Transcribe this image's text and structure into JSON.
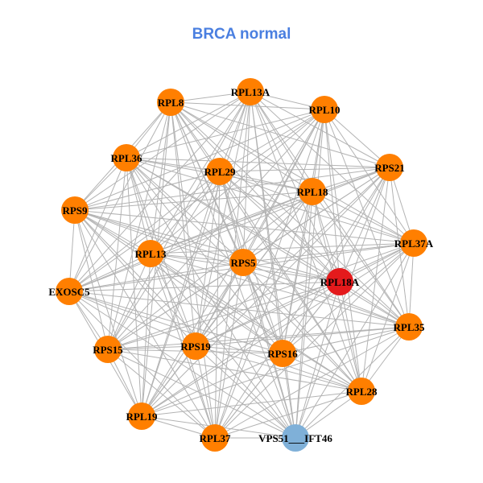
{
  "title": "BRCA normal",
  "colors": {
    "title": "#4a7fe0",
    "node_default": "#ff7f00",
    "edge": "#b3b3b3"
  },
  "node_categories": [
    {
      "category": "default",
      "color": "#ff7f00"
    },
    {
      "category": "highlight",
      "color": "#e41a1c"
    },
    {
      "category": "secondary",
      "color": "#7fb0d8"
    }
  ],
  "nodes": [
    {
      "id": "RPL8",
      "label": "RPL8",
      "category": "default"
    },
    {
      "id": "RPL13A",
      "label": "RPL13A",
      "category": "default"
    },
    {
      "id": "RPL10",
      "label": "RPL10",
      "category": "default"
    },
    {
      "id": "RPL36",
      "label": "RPL36",
      "category": "default"
    },
    {
      "id": "RPL29",
      "label": "RPL29",
      "category": "default"
    },
    {
      "id": "RPS21",
      "label": "RPS21",
      "category": "default"
    },
    {
      "id": "RPL18",
      "label": "RPL18",
      "category": "default"
    },
    {
      "id": "RPS9",
      "label": "RPS9",
      "category": "default"
    },
    {
      "id": "RPL37A",
      "label": "RPL37A",
      "category": "default"
    },
    {
      "id": "RPL13",
      "label": "RPL13",
      "category": "default"
    },
    {
      "id": "RPS5",
      "label": "RPS5",
      "category": "default"
    },
    {
      "id": "RPL18A",
      "label": "RPL18A",
      "category": "highlight"
    },
    {
      "id": "EXOSC5",
      "label": "EXOSC5",
      "category": "default"
    },
    {
      "id": "RPL35",
      "label": "RPL35",
      "category": "default"
    },
    {
      "id": "RPS19",
      "label": "RPS19",
      "category": "default"
    },
    {
      "id": "RPS15",
      "label": "RPS15",
      "category": "default"
    },
    {
      "id": "RPS16",
      "label": "RPS16",
      "category": "default"
    },
    {
      "id": "RPL28",
      "label": "RPL28",
      "category": "default"
    },
    {
      "id": "RPL19",
      "label": "RPL19",
      "category": "default"
    },
    {
      "id": "RPL37",
      "label": "RPL37",
      "category": "default"
    },
    {
      "id": "VPS51___IFT46",
      "label": "VPS51___IFT46",
      "category": "secondary"
    }
  ],
  "edges": [
    [
      "RPL8",
      "RPL13A"
    ],
    [
      "RPL8",
      "RPL10"
    ],
    [
      "RPL8",
      "RPL36"
    ],
    [
      "RPL8",
      "RPL29"
    ],
    [
      "RPL8",
      "RPS21"
    ],
    [
      "RPL8",
      "RPL18"
    ],
    [
      "RPL8",
      "RPS9"
    ],
    [
      "RPL8",
      "RPL37A"
    ],
    [
      "RPL8",
      "RPL13"
    ],
    [
      "RPL8",
      "RPS5"
    ],
    [
      "RPL8",
      "RPL18A"
    ],
    [
      "RPL8",
      "EXOSC5"
    ],
    [
      "RPL8",
      "RPL35"
    ],
    [
      "RPL8",
      "RPS19"
    ],
    [
      "RPL8",
      "RPS15"
    ],
    [
      "RPL8",
      "RPS16"
    ],
    [
      "RPL8",
      "RPL28"
    ],
    [
      "RPL8",
      "RPL19"
    ],
    [
      "RPL8",
      "RPL37"
    ],
    [
      "RPL8",
      "VPS51___IFT46"
    ],
    [
      "RPL13A",
      "RPL10"
    ],
    [
      "RPL13A",
      "RPL36"
    ],
    [
      "RPL13A",
      "RPL29"
    ],
    [
      "RPL13A",
      "RPS21"
    ],
    [
      "RPL13A",
      "RPL18"
    ],
    [
      "RPL13A",
      "RPS9"
    ],
    [
      "RPL13A",
      "RPL37A"
    ],
    [
      "RPL13A",
      "RPL13"
    ],
    [
      "RPL13A",
      "RPS5"
    ],
    [
      "RPL13A",
      "RPL18A"
    ],
    [
      "RPL13A",
      "EXOSC5"
    ],
    [
      "RPL13A",
      "RPL35"
    ],
    [
      "RPL13A",
      "RPS19"
    ],
    [
      "RPL13A",
      "RPS15"
    ],
    [
      "RPL13A",
      "RPS16"
    ],
    [
      "RPL13A",
      "RPL28"
    ],
    [
      "RPL13A",
      "RPL19"
    ],
    [
      "RPL13A",
      "RPL37"
    ],
    [
      "RPL13A",
      "VPS51___IFT46"
    ],
    [
      "RPL10",
      "RPL36"
    ],
    [
      "RPL10",
      "RPL29"
    ],
    [
      "RPL10",
      "RPS21"
    ],
    [
      "RPL10",
      "RPL18"
    ],
    [
      "RPL10",
      "RPS9"
    ],
    [
      "RPL10",
      "RPL37A"
    ],
    [
      "RPL10",
      "RPL13"
    ],
    [
      "RPL10",
      "RPS5"
    ],
    [
      "RPL10",
      "RPL18A"
    ],
    [
      "RPL10",
      "EXOSC5"
    ],
    [
      "RPL10",
      "RPL35"
    ],
    [
      "RPL10",
      "RPS19"
    ],
    [
      "RPL10",
      "RPS15"
    ],
    [
      "RPL10",
      "RPS16"
    ],
    [
      "RPL10",
      "RPL28"
    ],
    [
      "RPL10",
      "RPL19"
    ],
    [
      "RPL10",
      "RPL37"
    ],
    [
      "RPL10",
      "VPS51___IFT46"
    ],
    [
      "RPL36",
      "RPL29"
    ],
    [
      "RPL36",
      "RPS21"
    ],
    [
      "RPL36",
      "RPL18"
    ],
    [
      "RPL36",
      "RPS9"
    ],
    [
      "RPL36",
      "RPL37A"
    ],
    [
      "RPL36",
      "RPL13"
    ],
    [
      "RPL36",
      "RPS5"
    ],
    [
      "RPL36",
      "RPL18A"
    ],
    [
      "RPL36",
      "EXOSC5"
    ],
    [
      "RPL36",
      "RPL35"
    ],
    [
      "RPL36",
      "RPS19"
    ],
    [
      "RPL36",
      "RPS15"
    ],
    [
      "RPL36",
      "RPS16"
    ],
    [
      "RPL36",
      "RPL28"
    ],
    [
      "RPL36",
      "RPL19"
    ],
    [
      "RPL36",
      "RPL37"
    ],
    [
      "RPL36",
      "VPS51___IFT46"
    ],
    [
      "RPL29",
      "RPS21"
    ],
    [
      "RPL29",
      "RPL18"
    ],
    [
      "RPL29",
      "RPS9"
    ],
    [
      "RPL29",
      "RPL37A"
    ],
    [
      "RPL29",
      "RPL13"
    ],
    [
      "RPL29",
      "RPS5"
    ],
    [
      "RPL29",
      "RPL18A"
    ],
    [
      "RPL29",
      "EXOSC5"
    ],
    [
      "RPL29",
      "RPL35"
    ],
    [
      "RPL29",
      "RPS19"
    ],
    [
      "RPL29",
      "RPS15"
    ],
    [
      "RPL29",
      "RPS16"
    ],
    [
      "RPL29",
      "RPL28"
    ],
    [
      "RPL29",
      "RPL19"
    ],
    [
      "RPL29",
      "RPL37"
    ],
    [
      "RPL29",
      "VPS51___IFT46"
    ],
    [
      "RPS21",
      "RPL18"
    ],
    [
      "RPS21",
      "RPS9"
    ],
    [
      "RPS21",
      "RPL37A"
    ],
    [
      "RPS21",
      "RPL13"
    ],
    [
      "RPS21",
      "RPS5"
    ],
    [
      "RPS21",
      "RPL18A"
    ],
    [
      "RPS21",
      "EXOSC5"
    ],
    [
      "RPS21",
      "RPL35"
    ],
    [
      "RPS21",
      "RPS19"
    ],
    [
      "RPS21",
      "RPS15"
    ],
    [
      "RPS21",
      "RPS16"
    ],
    [
      "RPS21",
      "RPL28"
    ],
    [
      "RPS21",
      "RPL19"
    ],
    [
      "RPS21",
      "RPL37"
    ],
    [
      "RPS21",
      "VPS51___IFT46"
    ],
    [
      "RPL18",
      "RPS9"
    ],
    [
      "RPL18",
      "RPL37A"
    ],
    [
      "RPL18",
      "RPL13"
    ],
    [
      "RPL18",
      "RPS5"
    ],
    [
      "RPL18",
      "RPL18A"
    ],
    [
      "RPL18",
      "EXOSC5"
    ],
    [
      "RPL18",
      "RPL35"
    ],
    [
      "RPL18",
      "RPS19"
    ],
    [
      "RPL18",
      "RPS15"
    ],
    [
      "RPL18",
      "RPS16"
    ],
    [
      "RPL18",
      "RPL28"
    ],
    [
      "RPL18",
      "RPL19"
    ],
    [
      "RPL18",
      "RPL37"
    ],
    [
      "RPL18",
      "VPS51___IFT46"
    ],
    [
      "RPS9",
      "RPL37A"
    ],
    [
      "RPS9",
      "RPL13"
    ],
    [
      "RPS9",
      "RPS5"
    ],
    [
      "RPS9",
      "RPL18A"
    ],
    [
      "RPS9",
      "EXOSC5"
    ],
    [
      "RPS9",
      "RPL35"
    ],
    [
      "RPS9",
      "RPS19"
    ],
    [
      "RPS9",
      "RPS15"
    ],
    [
      "RPS9",
      "RPS16"
    ],
    [
      "RPS9",
      "RPL28"
    ],
    [
      "RPS9",
      "RPL19"
    ],
    [
      "RPS9",
      "RPL37"
    ],
    [
      "RPS9",
      "VPS51___IFT46"
    ],
    [
      "RPL37A",
      "RPL13"
    ],
    [
      "RPL37A",
      "RPS5"
    ],
    [
      "RPL37A",
      "RPL18A"
    ],
    [
      "RPL37A",
      "EXOSC5"
    ],
    [
      "RPL37A",
      "RPL35"
    ],
    [
      "RPL37A",
      "RPS19"
    ],
    [
      "RPL37A",
      "RPS15"
    ],
    [
      "RPL37A",
      "RPS16"
    ],
    [
      "RPL37A",
      "RPL28"
    ],
    [
      "RPL37A",
      "RPL19"
    ],
    [
      "RPL37A",
      "RPL37"
    ],
    [
      "RPL37A",
      "VPS51___IFT46"
    ],
    [
      "RPL13",
      "RPS5"
    ],
    [
      "RPL13",
      "RPL18A"
    ],
    [
      "RPL13",
      "EXOSC5"
    ],
    [
      "RPL13",
      "RPL35"
    ],
    [
      "RPL13",
      "RPS19"
    ],
    [
      "RPL13",
      "RPS15"
    ],
    [
      "RPL13",
      "RPS16"
    ],
    [
      "RPL13",
      "RPL28"
    ],
    [
      "RPL13",
      "RPL19"
    ],
    [
      "RPL13",
      "RPL37"
    ],
    [
      "RPL13",
      "VPS51___IFT46"
    ],
    [
      "RPS5",
      "RPL18A"
    ],
    [
      "RPS5",
      "EXOSC5"
    ],
    [
      "RPS5",
      "RPL35"
    ],
    [
      "RPS5",
      "RPS19"
    ],
    [
      "RPS5",
      "RPS15"
    ],
    [
      "RPS5",
      "RPS16"
    ],
    [
      "RPS5",
      "RPL28"
    ],
    [
      "RPS5",
      "RPL19"
    ],
    [
      "RPS5",
      "RPL37"
    ],
    [
      "RPS5",
      "VPS51___IFT46"
    ],
    [
      "RPL18A",
      "EXOSC5"
    ],
    [
      "RPL18A",
      "RPL35"
    ],
    [
      "RPL18A",
      "RPS19"
    ],
    [
      "RPL18A",
      "RPS15"
    ],
    [
      "RPL18A",
      "RPS16"
    ],
    [
      "RPL18A",
      "RPL28"
    ],
    [
      "RPL18A",
      "RPL19"
    ],
    [
      "RPL18A",
      "RPL37"
    ],
    [
      "RPL18A",
      "VPS51___IFT46"
    ],
    [
      "EXOSC5",
      "RPL35"
    ],
    [
      "EXOSC5",
      "RPS19"
    ],
    [
      "EXOSC5",
      "RPS15"
    ],
    [
      "EXOSC5",
      "RPS16"
    ],
    [
      "EXOSC5",
      "RPL28"
    ],
    [
      "EXOSC5",
      "RPL19"
    ],
    [
      "EXOSC5",
      "RPL37"
    ],
    [
      "EXOSC5",
      "VPS51___IFT46"
    ],
    [
      "RPL35",
      "RPS19"
    ],
    [
      "RPL35",
      "RPS15"
    ],
    [
      "RPL35",
      "RPS16"
    ],
    [
      "RPL35",
      "RPL28"
    ],
    [
      "RPL35",
      "RPL19"
    ],
    [
      "RPL35",
      "RPL37"
    ],
    [
      "RPL35",
      "VPS51___IFT46"
    ],
    [
      "RPS19",
      "RPS15"
    ],
    [
      "RPS19",
      "RPS16"
    ],
    [
      "RPS19",
      "RPL28"
    ],
    [
      "RPS19",
      "RPL19"
    ],
    [
      "RPS19",
      "RPL37"
    ],
    [
      "RPS19",
      "VPS51___IFT46"
    ],
    [
      "RPS15",
      "RPS16"
    ],
    [
      "RPS15",
      "RPL28"
    ],
    [
      "RPS15",
      "RPL19"
    ],
    [
      "RPS15",
      "RPL37"
    ],
    [
      "RPS15",
      "VPS51___IFT46"
    ],
    [
      "RPS16",
      "RPL28"
    ],
    [
      "RPS16",
      "RPL19"
    ],
    [
      "RPS16",
      "RPL37"
    ],
    [
      "RPS16",
      "VPS51___IFT46"
    ],
    [
      "RPL28",
      "RPL19"
    ],
    [
      "RPL28",
      "RPL37"
    ],
    [
      "RPL28",
      "VPS51___IFT46"
    ],
    [
      "RPL19",
      "RPL37"
    ],
    [
      "RPL19",
      "VPS51___IFT46"
    ],
    [
      "RPL37",
      "VPS51___IFT46"
    ]
  ]
}
